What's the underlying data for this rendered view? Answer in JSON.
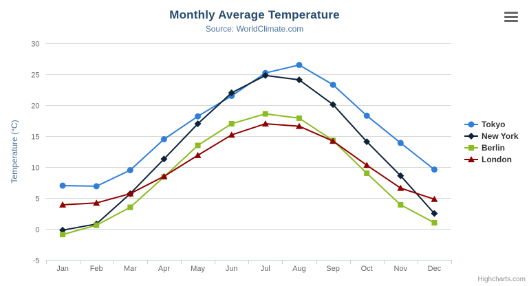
{
  "chart": {
    "title": "Monthly Average Temperature",
    "subtitle": "Source: WorldClimate.com",
    "credits_label": "Highcharts.com",
    "icons": {
      "context_menu": "hamburger"
    }
  },
  "chart_data": {
    "type": "line",
    "title": "Monthly Average Temperature",
    "subtitle": "Source: WorldClimate.com",
    "categories": [
      "Jan",
      "Feb",
      "Mar",
      "Apr",
      "May",
      "Jun",
      "Jul",
      "Aug",
      "Sep",
      "Oct",
      "Nov",
      "Dec"
    ],
    "series": [
      {
        "name": "Tokyo",
        "color": "#2f7ed8",
        "marker": "circle",
        "values": [
          7.0,
          6.9,
          9.5,
          14.5,
          18.2,
          21.5,
          25.2,
          26.5,
          23.3,
          18.3,
          13.9,
          9.6
        ]
      },
      {
        "name": "New York",
        "color": "#0d233a",
        "marker": "diamond",
        "values": [
          -0.2,
          0.8,
          5.7,
          11.3,
          17.0,
          22.0,
          24.8,
          24.1,
          20.1,
          14.1,
          8.6,
          2.5
        ]
      },
      {
        "name": "Berlin",
        "color": "#8bbc21",
        "marker": "square",
        "values": [
          -0.9,
          0.6,
          3.5,
          8.4,
          13.5,
          17.0,
          18.6,
          17.9,
          14.3,
          9.0,
          3.9,
          1.0
        ]
      },
      {
        "name": "London",
        "color": "#910000",
        "marker": "triangle",
        "values": [
          3.9,
          4.2,
          5.7,
          8.5,
          11.9,
          15.2,
          17.0,
          16.6,
          14.2,
          10.3,
          6.6,
          4.8
        ]
      }
    ],
    "xlabel": "",
    "ylabel": "Temperature (°C)",
    "ylim": [
      -5,
      30
    ],
    "ytick_step": 5,
    "grid": true,
    "legend_position": "right",
    "colors": {
      "grid_line": "#d8d8d8",
      "axis_line": "#c0d0e0",
      "axis_label": "#666666",
      "axis_title": "#4d759e",
      "title": "#274b6d",
      "subtitle": "#4d759e",
      "legend_text": "#333333",
      "credits": "#909090"
    }
  }
}
